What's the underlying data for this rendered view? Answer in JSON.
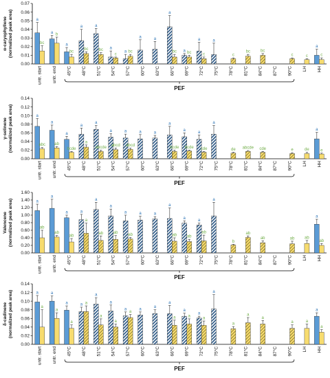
{
  "colors": {
    "blue": "#5b9bd5",
    "yellow": "#f7dc6f",
    "hatch_stripe": "#2e5a87",
    "letter_blue": "#2e75b6",
    "letter_green": "#70ad47",
    "error_bar": "#333333"
  },
  "chart_data": [
    {
      "type": "bar",
      "ylabel": [
        "α-caryophyllene",
        "(normalized peak area)"
      ],
      "ylim": [
        0,
        0.07
      ],
      "yticks": [
        "0.00",
        "0.01",
        "0.02",
        "0.03",
        "0.04",
        "0.05",
        "0.06",
        "0.07"
      ],
      "categories": [
        "untr. start",
        "untr. end",
        "45°C",
        "48°C",
        "51°C",
        "54°C",
        "57°C",
        "60°C",
        "63°C",
        "66°C",
        "69°C",
        "72°C",
        "75°C",
        "78°C",
        "81°C",
        "84°C",
        "87°C",
        "90°C",
        "LH",
        "HH"
      ],
      "blue_values": [
        0.036,
        0.029,
        0.014,
        0.027,
        0.035,
        0.008,
        0.006,
        0.016,
        0.017,
        0.043,
        0.01,
        0.015,
        0.011,
        null,
        null,
        null,
        null,
        null,
        null,
        0.01
      ],
      "blue_err": [
        0.012,
        0.004,
        0.005,
        0.013,
        0.006,
        0.007,
        0.005,
        0.012,
        0.009,
        0.013,
        0.002,
        0.01,
        0.013,
        null,
        null,
        null,
        null,
        null,
        null,
        0.007
      ],
      "blue_letters": [
        "a",
        "a",
        "a",
        "a",
        "a",
        "a",
        "a",
        "a",
        "a",
        "a",
        "a",
        "a",
        "a",
        "",
        "",
        "",
        "",
        "",
        "",
        "a"
      ],
      "yellow_values": [
        0.015,
        0.024,
        0.008,
        0.012,
        0.011,
        0.007,
        0.009,
        null,
        null,
        0.008,
        0.008,
        0.006,
        null,
        0.006,
        0.009,
        0.01,
        null,
        0.006,
        0.005,
        0.005
      ],
      "yellow_err": [
        0.006,
        0.007,
        0.003,
        0.002,
        0.002,
        0.001,
        0.002,
        null,
        null,
        0.003,
        0.002,
        0.002,
        null,
        0.001,
        0.002,
        0.002,
        null,
        0.001,
        0.001,
        0.002
      ],
      "yellow_letters": [
        "bc",
        "b",
        "bc",
        "bc",
        "bc",
        "c",
        "bc",
        "",
        "",
        "bc",
        "bc",
        "c",
        "",
        "c",
        "bc",
        "bc",
        "",
        "c",
        "c",
        "c"
      ],
      "x_group_label": "PEF"
    },
    {
      "type": "bar",
      "ylabel": [
        "γ-selinene",
        "(normalized peak area)"
      ],
      "ylim": [
        0,
        0.14
      ],
      "yticks": [
        "0.00",
        "0.02",
        "0.04",
        "0.06",
        "0.08",
        "0.10",
        "0.12",
        "0.14"
      ],
      "categories": [
        "untr. start",
        "untr. end",
        "45°C",
        "48°C",
        "51°C",
        "54°C",
        "57°C",
        "60°C",
        "63°C",
        "66°C",
        "69°C",
        "72°C",
        "75°C",
        "78°C",
        "81°C",
        "84°C",
        "87°C",
        "90°C",
        "LH",
        "HH"
      ],
      "blue_values": [
        0.075,
        0.066,
        0.045,
        0.057,
        0.068,
        0.05,
        0.048,
        0.046,
        0.048,
        0.055,
        0.051,
        0.045,
        0.057,
        null,
        null,
        null,
        null,
        null,
        null,
        0.046
      ],
      "blue_err": [
        0.018,
        0.012,
        0.007,
        0.014,
        0.009,
        0.008,
        0.009,
        0.01,
        0.006,
        0.02,
        0.009,
        0.01,
        0.02,
        null,
        null,
        null,
        null,
        null,
        null,
        0.015
      ],
      "blue_letters": [
        "a",
        "a",
        "a",
        "a",
        "a",
        "a",
        "a",
        "a",
        "a",
        "a",
        "a",
        "a",
        "a",
        "",
        "",
        "",
        "",
        "",
        "",
        "a"
      ],
      "yellow_values": [
        0.023,
        0.025,
        0.015,
        0.027,
        0.017,
        0.021,
        0.022,
        null,
        null,
        0.017,
        0.018,
        0.015,
        null,
        0.013,
        0.017,
        0.015,
        null,
        0.012,
        0.012,
        0.011
      ],
      "yellow_err": [
        0.003,
        0.003,
        0.002,
        0.005,
        0.003,
        0.004,
        0.003,
        null,
        null,
        0.003,
        0.002,
        0.002,
        null,
        0.002,
        0.002,
        0.002,
        null,
        0.002,
        0.003,
        0.002
      ],
      "yellow_letters": [
        "abc",
        "ab",
        "bcde",
        "a",
        "abcde",
        "abcd",
        "abcd",
        "",
        "",
        "bcde",
        "bcde",
        "cde",
        "",
        "de",
        "abcde",
        "cde",
        "",
        "e",
        "de",
        "e"
      ],
      "x_group_label": "PEF"
    },
    {
      "type": "bar",
      "ylabel": [
        "Valencene",
        "(normalized peak area)"
      ],
      "ylim": [
        0,
        1.6
      ],
      "yticks": [
        "0.00",
        "0.20",
        "0.40",
        "0.60",
        "0.80",
        "1.00",
        "1.20",
        "1.40",
        "1.60"
      ],
      "categories": [
        "untr. start",
        "untr. end",
        "45°C",
        "48°C",
        "51°C",
        "54°C",
        "57°C",
        "60°C",
        "63°C",
        "66°C",
        "69°C",
        "72°C",
        "75°C",
        "78°C",
        "81°C",
        "84°C",
        "87°C",
        "90°C",
        "LH",
        "HH"
      ],
      "blue_values": [
        1.12,
        1.18,
        0.93,
        0.88,
        1.15,
        0.98,
        0.85,
        0.87,
        0.9,
        0.91,
        0.79,
        0.74,
        0.98,
        null,
        null,
        null,
        null,
        null,
        null,
        0.76
      ],
      "blue_err": [
        0.17,
        0.24,
        0.07,
        0.14,
        0.19,
        0.18,
        0.15,
        0.1,
        0.06,
        0.28,
        0.06,
        0.05,
        0.36,
        null,
        null,
        null,
        null,
        null,
        null,
        0.13
      ],
      "blue_letters": [
        "a",
        "a",
        "a",
        "a",
        "a",
        "a",
        "a",
        "a",
        "a",
        "a",
        "a",
        "a",
        "a",
        "",
        "",
        "",
        "",
        "",
        "",
        "a"
      ],
      "yellow_values": [
        0.4,
        0.42,
        0.29,
        0.52,
        0.33,
        0.36,
        0.37,
        null,
        null,
        0.31,
        0.3,
        0.32,
        null,
        0.21,
        0.41,
        0.27,
        null,
        0.24,
        0.25,
        0.2
      ],
      "yellow_err": [
        0.2,
        0.04,
        0.09,
        0.27,
        0.12,
        0.1,
        0.04,
        null,
        null,
        0.09,
        0.06,
        0.15,
        null,
        0.02,
        0.04,
        0.05,
        null,
        0.07,
        0.08,
        0.05
      ],
      "yellow_letters": [
        "ab",
        "ab",
        "ab",
        "a",
        "ab",
        "ab",
        "ab",
        "",
        "",
        "ab",
        "ab",
        "ab",
        "",
        "b",
        "ab",
        "ab",
        "",
        "ab",
        "ab",
        "ab"
      ],
      "x_group_label": "PEF"
    },
    {
      "type": "bar",
      "ylabel": [
        "δ-cadinene",
        "(normalized peak area)"
      ],
      "ylim": [
        0,
        0.14
      ],
      "yticks": [
        "0.00",
        "0.02",
        "0.04",
        "0.06",
        "0.08",
        "0.10",
        "0.12",
        "0.14"
      ],
      "categories": [
        "untr. start",
        "untr. end",
        "45°C",
        "48°C",
        "51°C",
        "54°C",
        "57°C",
        "60°C",
        "63°C",
        "66°C",
        "69°C",
        "72°C",
        "75°C",
        "78°C",
        "81°C",
        "84°C",
        "87°C",
        "90°C",
        "LH",
        "HH"
      ],
      "blue_values": [
        0.098,
        0.1,
        0.079,
        0.076,
        0.093,
        0.077,
        0.066,
        0.068,
        0.071,
        0.071,
        0.065,
        0.061,
        0.082,
        null,
        null,
        null,
        null,
        null,
        null,
        0.065
      ],
      "blue_err": [
        0.015,
        0.012,
        0.01,
        0.01,
        0.015,
        0.014,
        0.009,
        0.007,
        0.009,
        0.019,
        0.007,
        0.004,
        0.033,
        null,
        null,
        null,
        null,
        null,
        null,
        0.008
      ],
      "blue_letters": [
        "a",
        "a",
        "a",
        "a",
        "a",
        "a",
        "a",
        "a",
        "a",
        "a",
        "a",
        "a",
        "a",
        "",
        "",
        "",
        "",
        "",
        "",
        "a"
      ],
      "yellow_values": [
        0.04,
        0.06,
        0.037,
        0.076,
        0.045,
        0.04,
        0.062,
        null,
        null,
        0.044,
        0.047,
        0.044,
        null,
        0.036,
        0.05,
        0.047,
        null,
        0.037,
        0.037,
        0.028
      ],
      "yellow_err": [
        0.04,
        0.013,
        0.008,
        0.013,
        0.014,
        0.007,
        0.007,
        null,
        null,
        0.012,
        0.012,
        0.01,
        null,
        0.005,
        0.012,
        0.008,
        null,
        0.008,
        0.01,
        0.006
      ],
      "yellow_letters": [
        "a",
        "a",
        "a",
        "a",
        "a",
        "a",
        "a",
        "",
        "",
        "a",
        "a",
        "a",
        "",
        "a",
        "a",
        "a",
        "",
        "a",
        "a",
        "a"
      ],
      "x_group_label": "PEF"
    }
  ]
}
